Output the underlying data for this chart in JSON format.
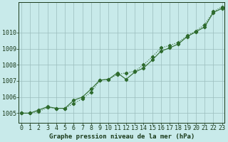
{
  "title": "Graphe pression niveau de la mer (hPa)",
  "x_values": [
    0,
    1,
    2,
    3,
    4,
    5,
    6,
    7,
    8,
    9,
    10,
    11,
    12,
    13,
    14,
    15,
    16,
    17,
    18,
    19,
    20,
    21,
    22,
    23
  ],
  "line1": [
    1005.0,
    1005.0,
    1005.2,
    1005.4,
    1005.3,
    1005.3,
    1005.8,
    1006.0,
    1006.5,
    1007.05,
    1007.1,
    1007.5,
    1007.1,
    1007.55,
    1007.8,
    1008.3,
    1008.85,
    1009.05,
    1009.3,
    1009.75,
    1010.05,
    1010.35,
    1011.25,
    1011.5
  ],
  "line2": [
    1005.0,
    1005.0,
    1005.1,
    1005.35,
    1005.3,
    1005.3,
    1005.6,
    1005.9,
    1006.3,
    1007.05,
    1007.1,
    1007.4,
    1007.5,
    1007.6,
    1008.0,
    1008.5,
    1009.05,
    1009.2,
    1009.4,
    1009.8,
    1010.1,
    1010.5,
    1011.3,
    1011.6
  ],
  "ylim_min": 1004.4,
  "ylim_max": 1011.9,
  "yticks": [
    1005,
    1006,
    1007,
    1008,
    1009,
    1010
  ],
  "line_color": "#2d6a2d",
  "bg_color": "#c8eaea",
  "grid_color": "#9bbdbd",
  "label_color": "#1a3a1a",
  "xlabel_fontsize": 6.5,
  "tick_fontsize": 6.0,
  "ylabel_fontsize": 6.0
}
